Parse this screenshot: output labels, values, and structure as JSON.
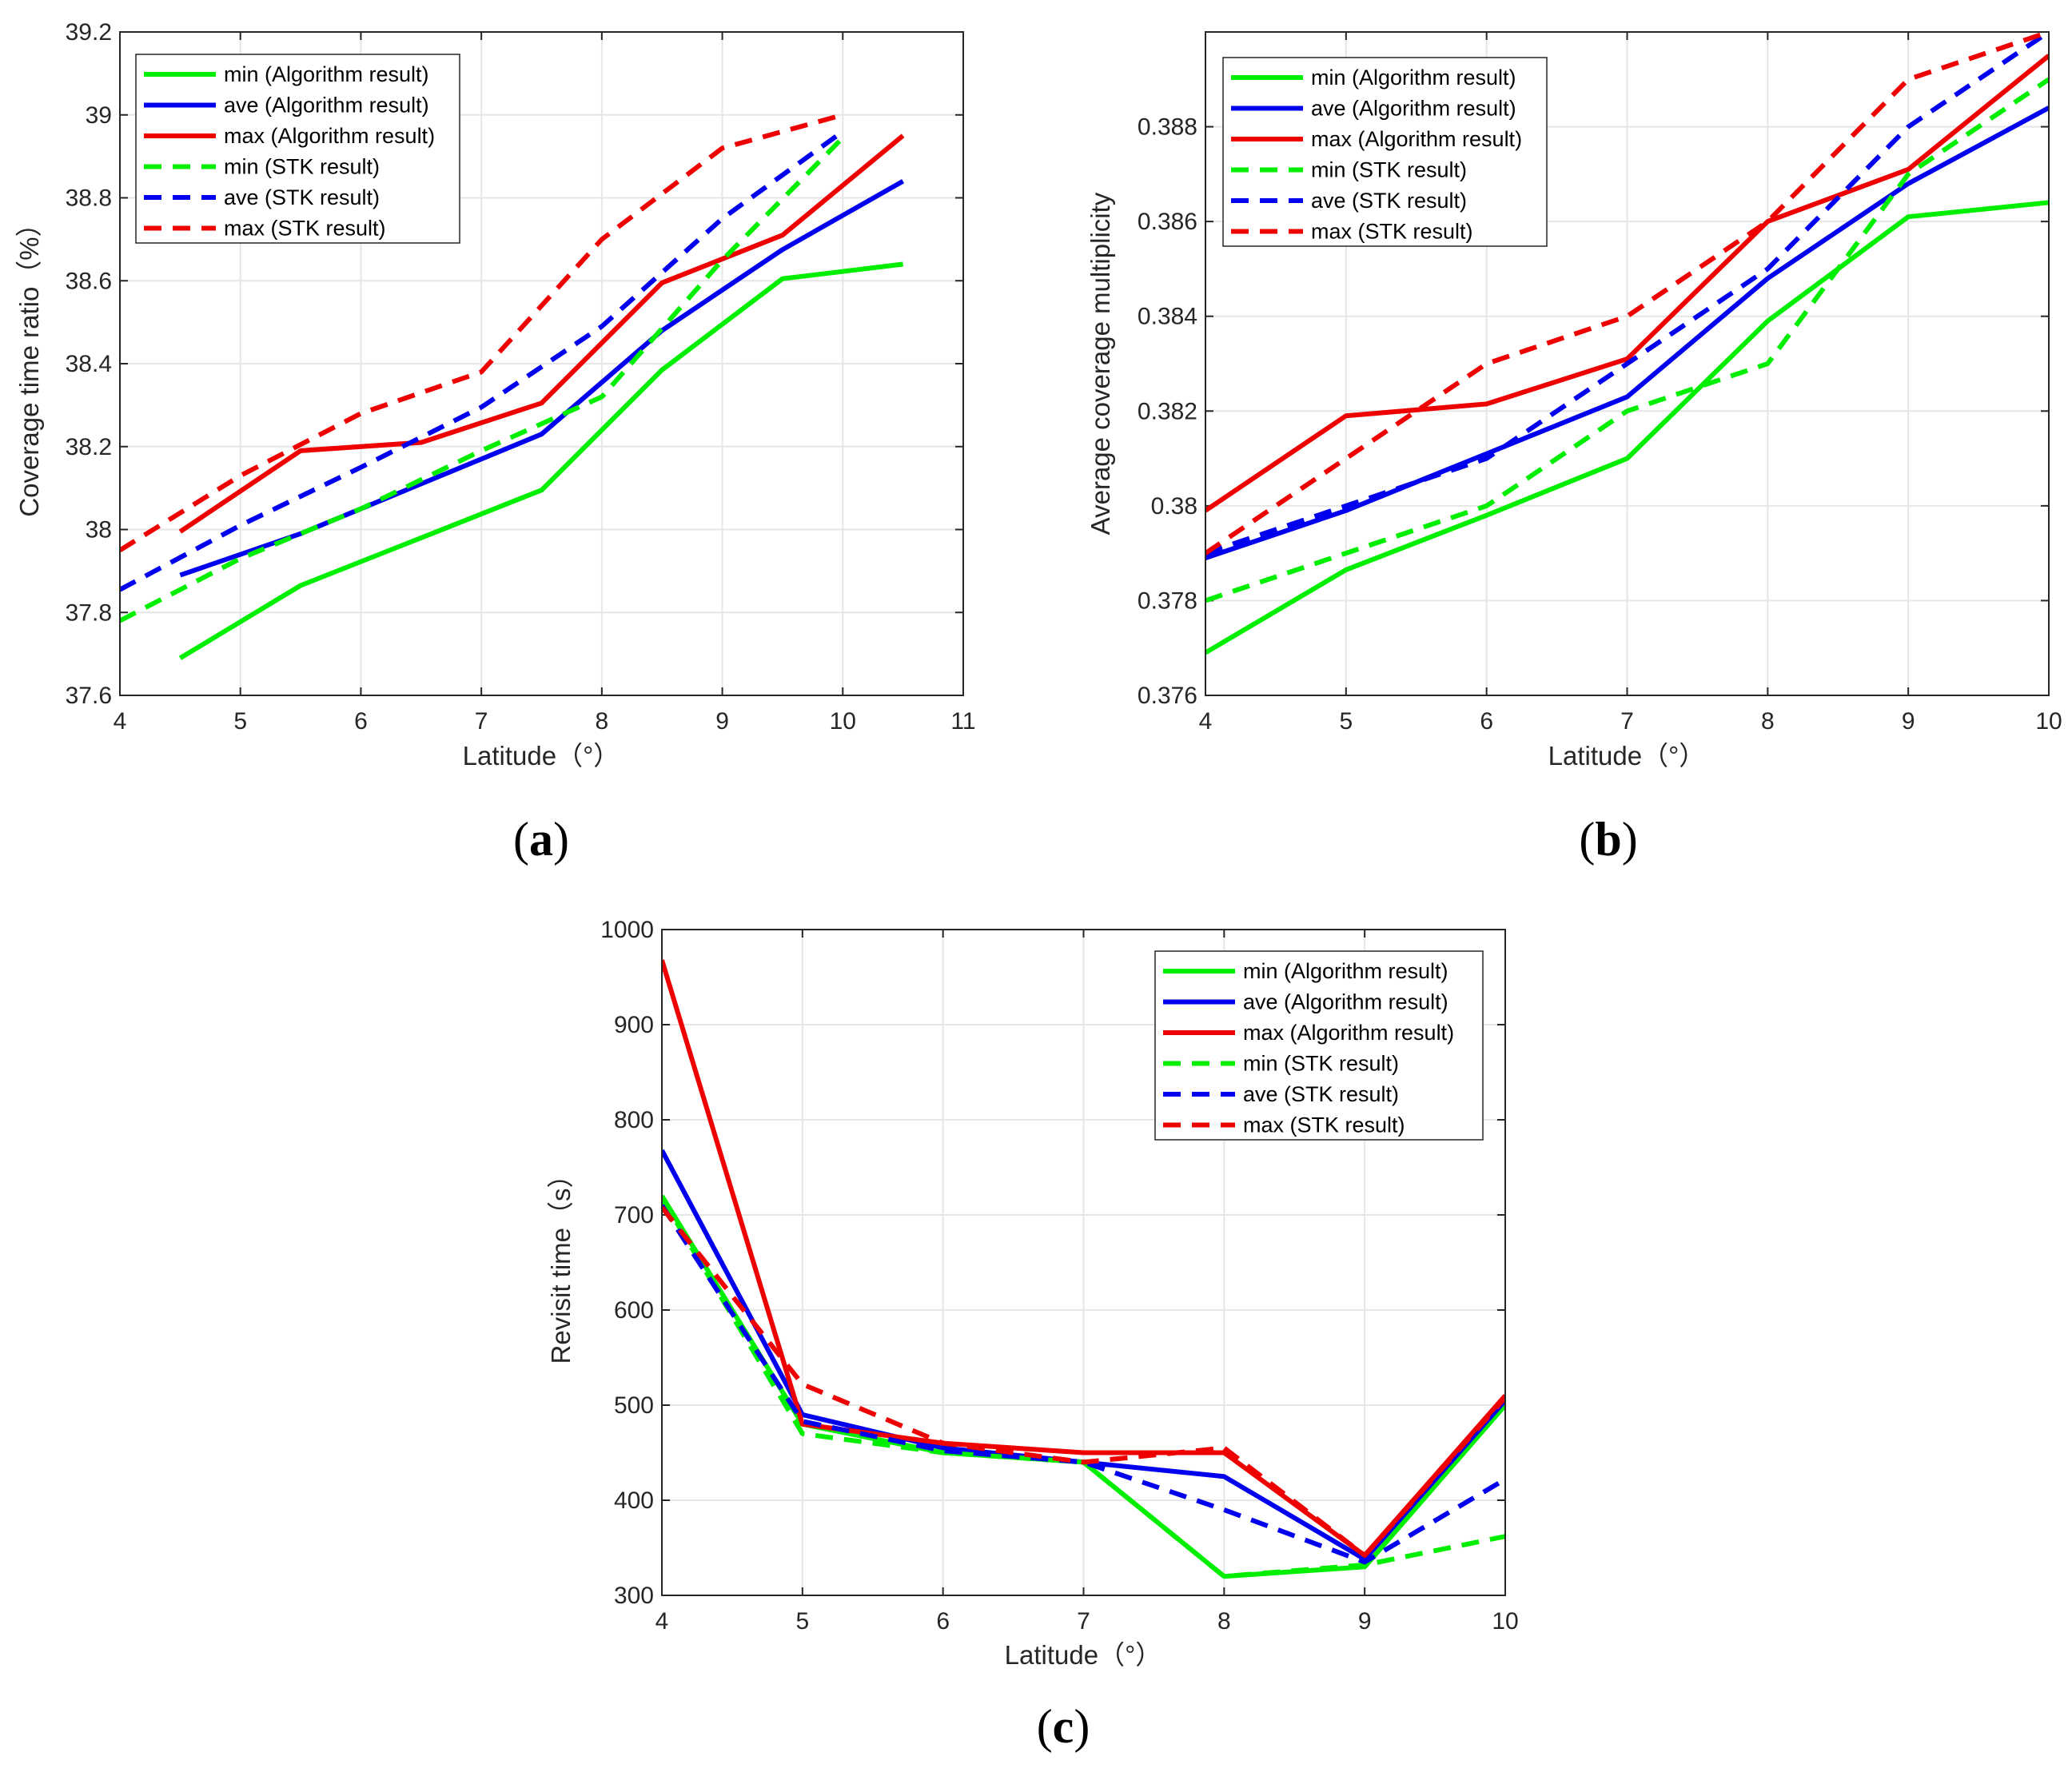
{
  "colors": {
    "min": "#00ee00",
    "ave": "#0000ee",
    "max": "#ee0000",
    "grid": "#e6e6e6",
    "axis": "#262626"
  },
  "chart_data": [
    {
      "panel_label": "a",
      "type": "line",
      "xlabel": "Latitude（°）",
      "ylabel": "Coverage time ratio（%）",
      "xlim": [
        4,
        11
      ],
      "ylim": [
        37.6,
        39.2
      ],
      "xticks": [
        "4",
        "5",
        "6",
        "7",
        "8",
        "9",
        "10",
        "11"
      ],
      "yticks": [
        "37.6",
        "37.8",
        "38",
        "38.2",
        "38.4",
        "38.6",
        "38.8",
        "39",
        "39.2"
      ],
      "grid": true,
      "legend": "top-left",
      "series": [
        {
          "name": "min (Algorithm result)",
          "color": "min",
          "style": "solid",
          "x": [
            4.5,
            5.5,
            6.5,
            7.5,
            8.5,
            9.5,
            10.5
          ],
          "y": [
            37.69,
            37.865,
            37.98,
            38.095,
            38.385,
            38.605,
            38.64
          ]
        },
        {
          "name": "ave (Algorithm result)",
          "color": "ave",
          "style": "solid",
          "x": [
            4.5,
            5.5,
            6.5,
            7.5,
            8.5,
            9.5,
            10.5
          ],
          "y": [
            37.89,
            37.99,
            38.11,
            38.23,
            38.48,
            38.675,
            38.84
          ]
        },
        {
          "name": "max (Algorithm result)",
          "color": "max",
          "style": "solid",
          "x": [
            4.5,
            5.5,
            6.5,
            7.5,
            8.5,
            9.5,
            10.5
          ],
          "y": [
            37.995,
            38.19,
            38.21,
            38.305,
            38.595,
            38.71,
            38.95
          ]
        },
        {
          "name": "min (STK result)",
          "color": "min",
          "style": "dashed",
          "x": [
            4,
            5,
            6,
            7,
            8,
            9,
            10
          ],
          "y": [
            37.78,
            37.93,
            38.05,
            38.19,
            38.32,
            38.65,
            38.945
          ]
        },
        {
          "name": "ave (STK result)",
          "color": "ave",
          "style": "dashed",
          "x": [
            4,
            5,
            6,
            7,
            8,
            9,
            10
          ],
          "y": [
            37.855,
            38.01,
            38.15,
            38.295,
            38.49,
            38.75,
            38.96
          ]
        },
        {
          "name": "max (STK result)",
          "color": "max",
          "style": "dashed",
          "x": [
            4,
            5,
            6,
            7,
            8,
            9,
            10
          ],
          "y": [
            37.95,
            38.13,
            38.28,
            38.38,
            38.7,
            38.92,
            39.0
          ]
        }
      ]
    },
    {
      "panel_label": "b",
      "type": "line",
      "xlabel": "Latitude（°）",
      "ylabel": "Average coverage multiplicity",
      "xlim": [
        4,
        10
      ],
      "ylim": [
        0.376,
        0.39
      ],
      "xticks": [
        "4",
        "5",
        "6",
        "7",
        "8",
        "9",
        "10"
      ],
      "yticks": [
        "0.376",
        "0.378",
        "0.38",
        "0.382",
        "0.384",
        "0.386",
        "0.388"
      ],
      "grid": true,
      "legend": "top-left",
      "series": [
        {
          "name": "min (Algorithm result)",
          "color": "min",
          "style": "solid",
          "x": [
            4,
            5,
            6,
            7,
            8,
            9,
            10
          ],
          "y": [
            0.3769,
            0.37865,
            0.3798,
            0.381,
            0.3839,
            0.3861,
            0.3864
          ]
        },
        {
          "name": "ave (Algorithm result)",
          "color": "ave",
          "style": "solid",
          "x": [
            4,
            5,
            6,
            7,
            8,
            9,
            10
          ],
          "y": [
            0.3789,
            0.3799,
            0.3811,
            0.3823,
            0.3848,
            0.3868,
            0.3884
          ]
        },
        {
          "name": "max (Algorithm result)",
          "color": "max",
          "style": "solid",
          "x": [
            4,
            5,
            6,
            7,
            8,
            9,
            10
          ],
          "y": [
            0.3799,
            0.3819,
            0.38215,
            0.3831,
            0.386,
            0.3871,
            0.3895
          ]
        },
        {
          "name": "min (STK result)",
          "color": "min",
          "style": "dashed",
          "x": [
            4,
            5,
            6,
            7,
            8,
            9,
            10
          ],
          "y": [
            0.378,
            0.379,
            0.38,
            0.382,
            0.383,
            0.387,
            0.389
          ]
        },
        {
          "name": "ave (STK result)",
          "color": "ave",
          "style": "dashed",
          "x": [
            4,
            5,
            6,
            7,
            8,
            9,
            10
          ],
          "y": [
            0.379,
            0.38,
            0.381,
            0.383,
            0.385,
            0.388,
            0.39
          ]
        },
        {
          "name": "max (STK result)",
          "color": "max",
          "style": "dashed",
          "x": [
            4,
            5,
            6,
            7,
            8,
            9,
            10
          ],
          "y": [
            0.379,
            0.381,
            0.383,
            0.384,
            0.386,
            0.389,
            0.39
          ]
        }
      ]
    },
    {
      "panel_label": "c",
      "type": "line",
      "xlabel": "Latitude（°）",
      "ylabel": "Revisit time（s）",
      "xlim": [
        4,
        10
      ],
      "ylim": [
        300,
        1000
      ],
      "xticks": [
        "4",
        "5",
        "6",
        "7",
        "8",
        "9",
        "10"
      ],
      "yticks": [
        "300",
        "400",
        "500",
        "600",
        "700",
        "800",
        "900",
        "1000"
      ],
      "grid": true,
      "legend": "top-right",
      "series": [
        {
          "name": "min (Algorithm result)",
          "color": "min",
          "style": "solid",
          "x": [
            4,
            5,
            6,
            7,
            8,
            9,
            10
          ],
          "y": [
            720,
            480,
            450,
            440,
            320,
            330,
            500
          ]
        },
        {
          "name": "ave (Algorithm result)",
          "color": "ave",
          "style": "solid",
          "x": [
            4,
            5,
            6,
            7,
            8,
            9,
            10
          ],
          "y": [
            768,
            490,
            455,
            440,
            425,
            338,
            505
          ]
        },
        {
          "name": "max (Algorithm result)",
          "color": "max",
          "style": "solid",
          "x": [
            4,
            5,
            6,
            7,
            8,
            9,
            10
          ],
          "y": [
            968,
            480,
            460,
            450,
            450,
            342,
            510
          ]
        },
        {
          "name": "min (STK result)",
          "color": "min",
          "style": "dashed",
          "x": [
            4,
            5,
            6,
            7,
            8,
            9,
            10
          ],
          "y": [
            718,
            470,
            450,
            440,
            320,
            332,
            362
          ]
        },
        {
          "name": "ave (STK result)",
          "color": "ave",
          "style": "dashed",
          "x": [
            4,
            5,
            6,
            7,
            8,
            9,
            10
          ],
          "y": [
            710,
            483,
            452,
            440,
            390,
            335,
            422
          ]
        },
        {
          "name": "max (STK result)",
          "color": "max",
          "style": "dashed",
          "x": [
            4,
            5,
            6,
            7,
            8,
            9,
            10
          ],
          "y": [
            708,
            522,
            460,
            440,
            455,
            342,
            508
          ]
        }
      ]
    }
  ]
}
